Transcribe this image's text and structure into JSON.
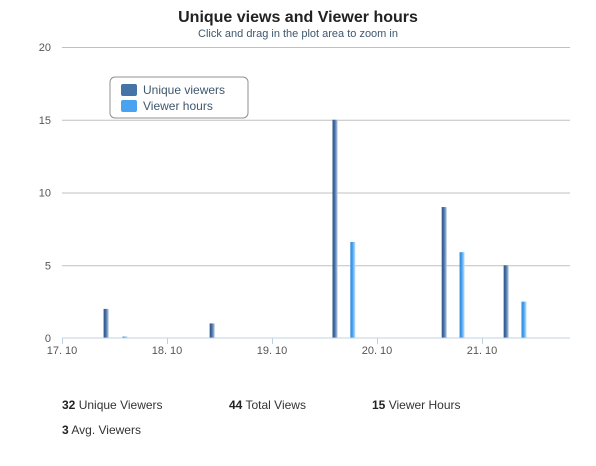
{
  "chart_data": {
    "type": "bar",
    "title": "Unique views and Viewer hours",
    "subtitle": "Click and drag in the plot area to zoom in",
    "xlabel": "",
    "ylabel": "",
    "ylim": [
      0,
      20
    ],
    "y_ticks": [
      "0",
      "5",
      "10",
      "15",
      "20"
    ],
    "x_ticks": [
      "17. 10",
      "18. 10",
      "19. 10",
      "20. 10",
      "21. 10"
    ],
    "x_domain": [
      0,
      5
    ],
    "legend_position": "top-left",
    "grid": true,
    "series": [
      {
        "name": "Unique viewers",
        "color": "#4572a7",
        "points": [
          {
            "x": 0.42,
            "y": 2
          },
          {
            "x": 1.43,
            "y": 1
          },
          {
            "x": 2.6,
            "y": 15
          },
          {
            "x": 3.64,
            "y": 9
          },
          {
            "x": 4.23,
            "y": 5
          }
        ]
      },
      {
        "name": "Viewer hours",
        "color": "#4aa3f0",
        "points": [
          {
            "x": 0.6,
            "y": 0.1
          },
          {
            "x": 2.77,
            "y": 6.6
          },
          {
            "x": 3.81,
            "y": 5.9
          },
          {
            "x": 4.4,
            "y": 2.5
          }
        ]
      }
    ]
  },
  "stats": {
    "unique_viewers_value": "32",
    "unique_viewers_label": "Unique Viewers",
    "total_views_value": "44",
    "total_views_label": "Total Views",
    "viewer_hours_value": "15",
    "viewer_hours_label": "Viewer Hours",
    "avg_viewers_value": "3",
    "avg_viewers_label": "Avg. Viewers"
  }
}
